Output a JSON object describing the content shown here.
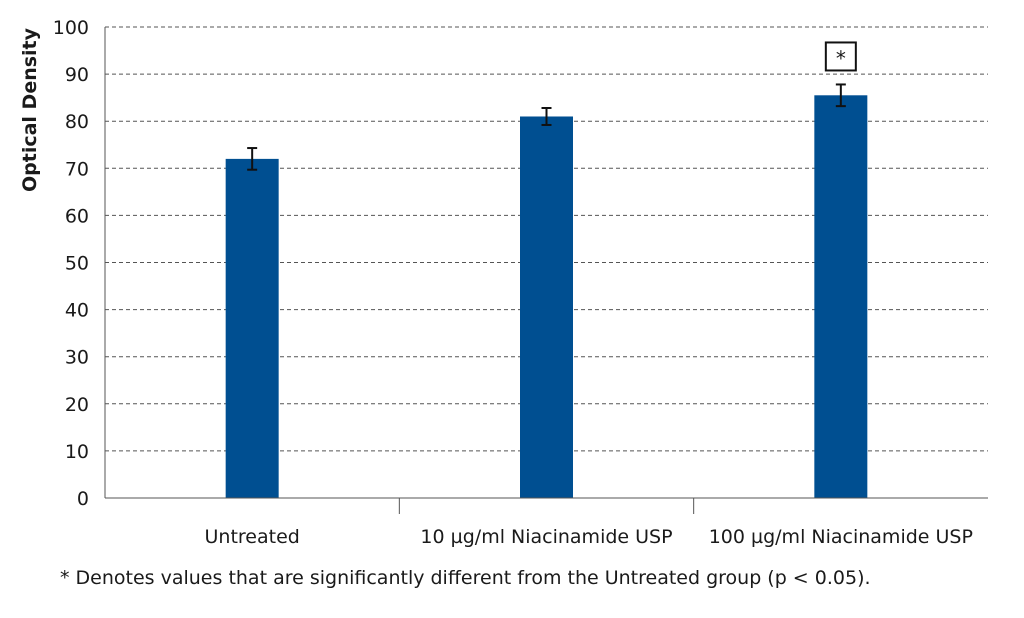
{
  "chart_data": {
    "type": "bar",
    "ylabel": "Optical Density",
    "xlabel": "",
    "ylim": [
      0,
      100
    ],
    "yticks": [
      0,
      10,
      20,
      30,
      40,
      50,
      60,
      70,
      80,
      90,
      100
    ],
    "grid": "horizontal dashed",
    "categories": [
      "Untreated",
      "10 µg/ml Niacinamide USP",
      "100 µg/ml Niacinamide USP"
    ],
    "values": [
      72,
      81,
      85.5
    ],
    "error": [
      2.3,
      1.8,
      2.3
    ],
    "significance": [
      "",
      "",
      "*"
    ],
    "bar_color": "#004f91"
  },
  "footnote": "* Denotes values that are significantly different from the Untreated group (p < 0.05)."
}
